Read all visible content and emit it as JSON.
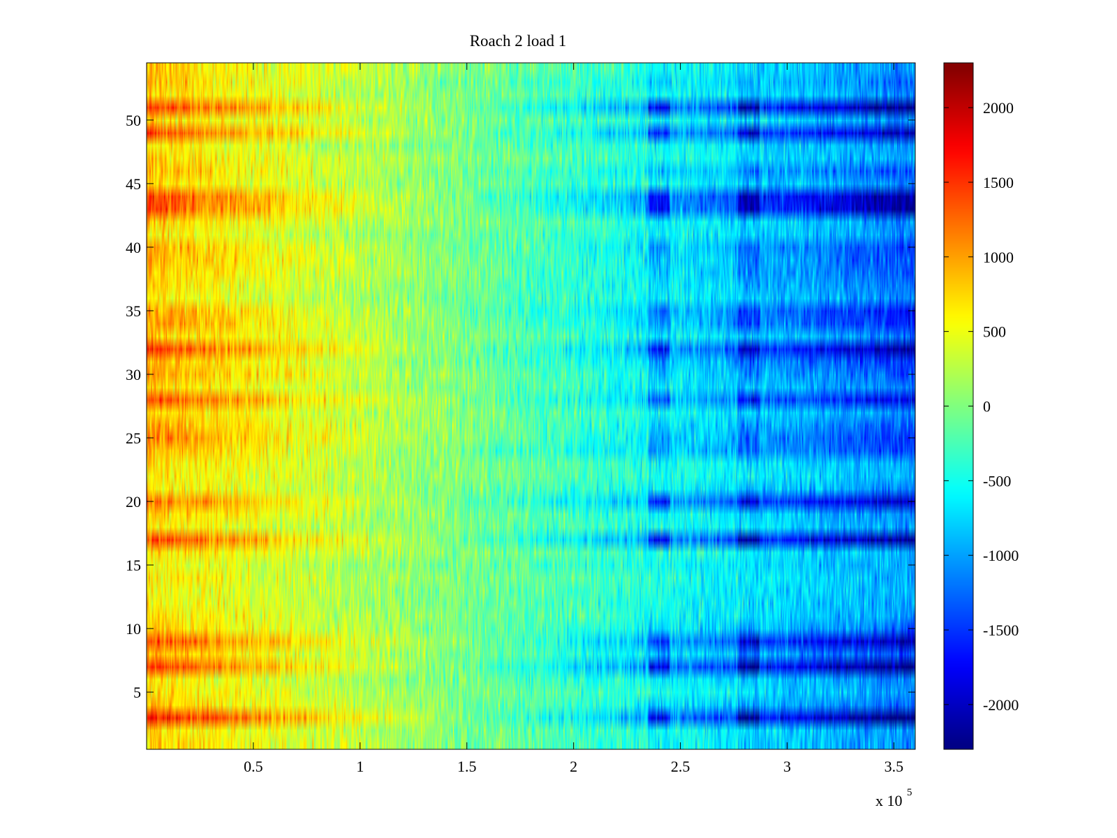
{
  "chart_data": {
    "type": "heatmap",
    "title": "Roach 2 load 1",
    "xlabel": "",
    "ylabel": "",
    "x_exponent_label": "x 10",
    "x_exponent_power": "5",
    "x_range": [
      0,
      360000
    ],
    "y_range": [
      0.5,
      54.5
    ],
    "x_ticks": [
      50000,
      100000,
      150000,
      200000,
      250000,
      300000,
      350000
    ],
    "x_tick_labels": [
      "0.5",
      "1",
      "1.5",
      "2",
      "2.5",
      "3",
      "3.5"
    ],
    "y_ticks": [
      5,
      10,
      15,
      20,
      25,
      30,
      35,
      40,
      45,
      50
    ],
    "y_tick_labels": [
      "5",
      "10",
      "15",
      "20",
      "25",
      "30",
      "35",
      "40",
      "45",
      "50"
    ],
    "rows": 54,
    "colormap": "jet",
    "color_range": [
      -2300,
      2300
    ],
    "colorbar_ticks": [
      2000,
      1500,
      1000,
      500,
      0,
      -500,
      -1000,
      -1500,
      -2000
    ],
    "colorbar_tick_labels": [
      "2000",
      "1500",
      "1000",
      "500",
      "0",
      "-500",
      "-1000",
      "-1500",
      "-2000"
    ],
    "grid": false,
    "colorbar_position": "right",
    "trend": "values decrease from left (high, ~+2000 on strong rows) to right (low, ~-1500); strong rows show the largest swing",
    "row_bias": [
      {
        "row": 1,
        "bias": 0.25
      },
      {
        "row": 2,
        "bias": 0.2
      },
      {
        "row": 3,
        "bias": 1.6
      },
      {
        "row": 4,
        "bias": 0.4
      },
      {
        "row": 5,
        "bias": 0.15
      },
      {
        "row": 6,
        "bias": 0.2
      },
      {
        "row": 7,
        "bias": 1.45
      },
      {
        "row": 8,
        "bias": 0.5
      },
      {
        "row": 9,
        "bias": 1.25
      },
      {
        "row": 10,
        "bias": 0.35
      },
      {
        "row": 11,
        "bias": 0.15
      },
      {
        "row": 12,
        "bias": 0.1
      },
      {
        "row": 13,
        "bias": 0.05
      },
      {
        "row": 14,
        "bias": 0.1
      },
      {
        "row": 15,
        "bias": 0.05
      },
      {
        "row": 16,
        "bias": 0.1
      },
      {
        "row": 17,
        "bias": 1.35
      },
      {
        "row": 18,
        "bias": 0.1
      },
      {
        "row": 19,
        "bias": 0.3
      },
      {
        "row": 20,
        "bias": 1.1
      },
      {
        "row": 21,
        "bias": 0.2
      },
      {
        "row": 22,
        "bias": 0.1
      },
      {
        "row": 23,
        "bias": 0.15
      },
      {
        "row": 24,
        "bias": 0.6
      },
      {
        "row": 25,
        "bias": 0.7
      },
      {
        "row": 26,
        "bias": 0.5
      },
      {
        "row": 27,
        "bias": 0.25
      },
      {
        "row": 28,
        "bias": 1.05
      },
      {
        "row": 29,
        "bias": 0.3
      },
      {
        "row": 30,
        "bias": 0.55
      },
      {
        "row": 31,
        "bias": 0.6
      },
      {
        "row": 32,
        "bias": 1.3
      },
      {
        "row": 33,
        "bias": 0.3
      },
      {
        "row": 34,
        "bias": 0.7
      },
      {
        "row": 35,
        "bias": 0.75
      },
      {
        "row": 36,
        "bias": 0.2
      },
      {
        "row": 37,
        "bias": 0.3
      },
      {
        "row": 38,
        "bias": 0.45
      },
      {
        "row": 39,
        "bias": 0.5
      },
      {
        "row": 40,
        "bias": 0.55
      },
      {
        "row": 41,
        "bias": 0.15
      },
      {
        "row": 42,
        "bias": 0.25
      },
      {
        "row": 43,
        "bias": 1.3
      },
      {
        "row": 44,
        "bias": 1.3
      },
      {
        "row": 45,
        "bias": 0.2
      },
      {
        "row": 46,
        "bias": 0.5
      },
      {
        "row": 47,
        "bias": 0.2
      },
      {
        "row": 48,
        "bias": 0.15
      },
      {
        "row": 49,
        "bias": 1.2
      },
      {
        "row": 50,
        "bias": 0.15
      },
      {
        "row": 51,
        "bias": 1.4
      },
      {
        "row": 52,
        "bias": 0.2
      },
      {
        "row": 53,
        "bias": 0.35
      },
      {
        "row": 54,
        "bias": 0.25
      }
    ],
    "dark_blue_bands_x": [
      [
        235000,
        245000
      ],
      [
        277000,
        287000
      ]
    ]
  }
}
